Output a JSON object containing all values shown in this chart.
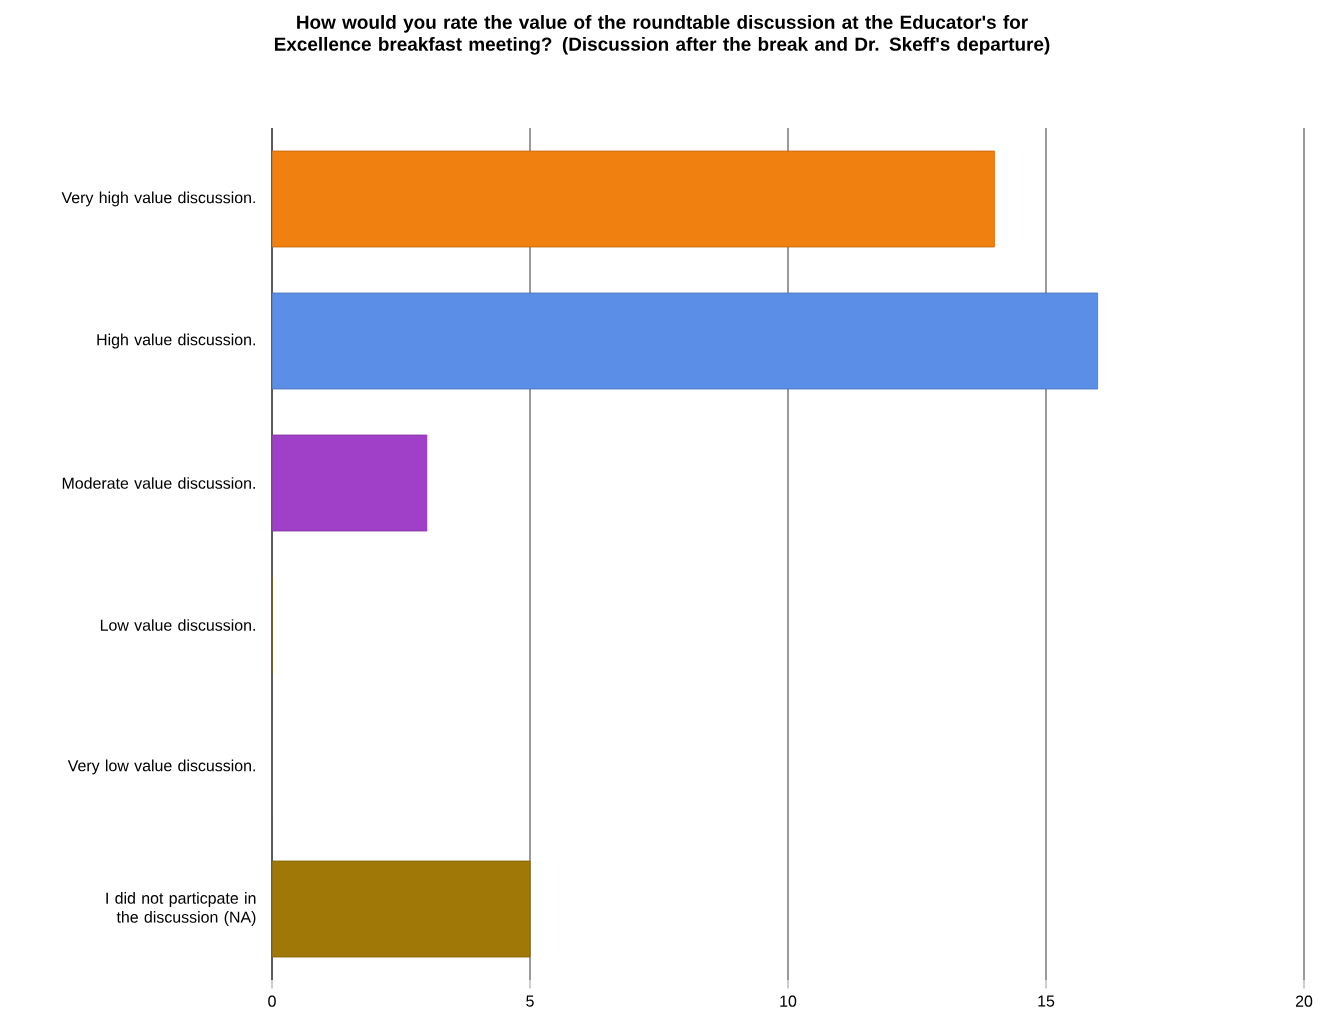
{
  "chart_data": {
    "type": "bar",
    "orientation": "horizontal",
    "title": "How would you rate the value of the roundtable discussion at the Educator's for Excellence breakfast meeting? (Discussion after the break and Dr. Skeff's departure)",
    "categories": [
      "Very high value discussion.",
      "High value discussion.",
      "Moderate value discussion.",
      "Low value discussion.",
      "Very low value discussion.",
      "I did not particpate in the discussion (NA)"
    ],
    "values": [
      14,
      16,
      3,
      0,
      0,
      5
    ],
    "colors": [
      "#f08010",
      "#5b8ee6",
      "#a040c8",
      "#a87c08",
      "#808080",
      "#a07808"
    ],
    "xlim": [
      0,
      20
    ],
    "xticks": [
      0,
      5,
      10,
      15,
      20
    ],
    "grid": "x"
  }
}
